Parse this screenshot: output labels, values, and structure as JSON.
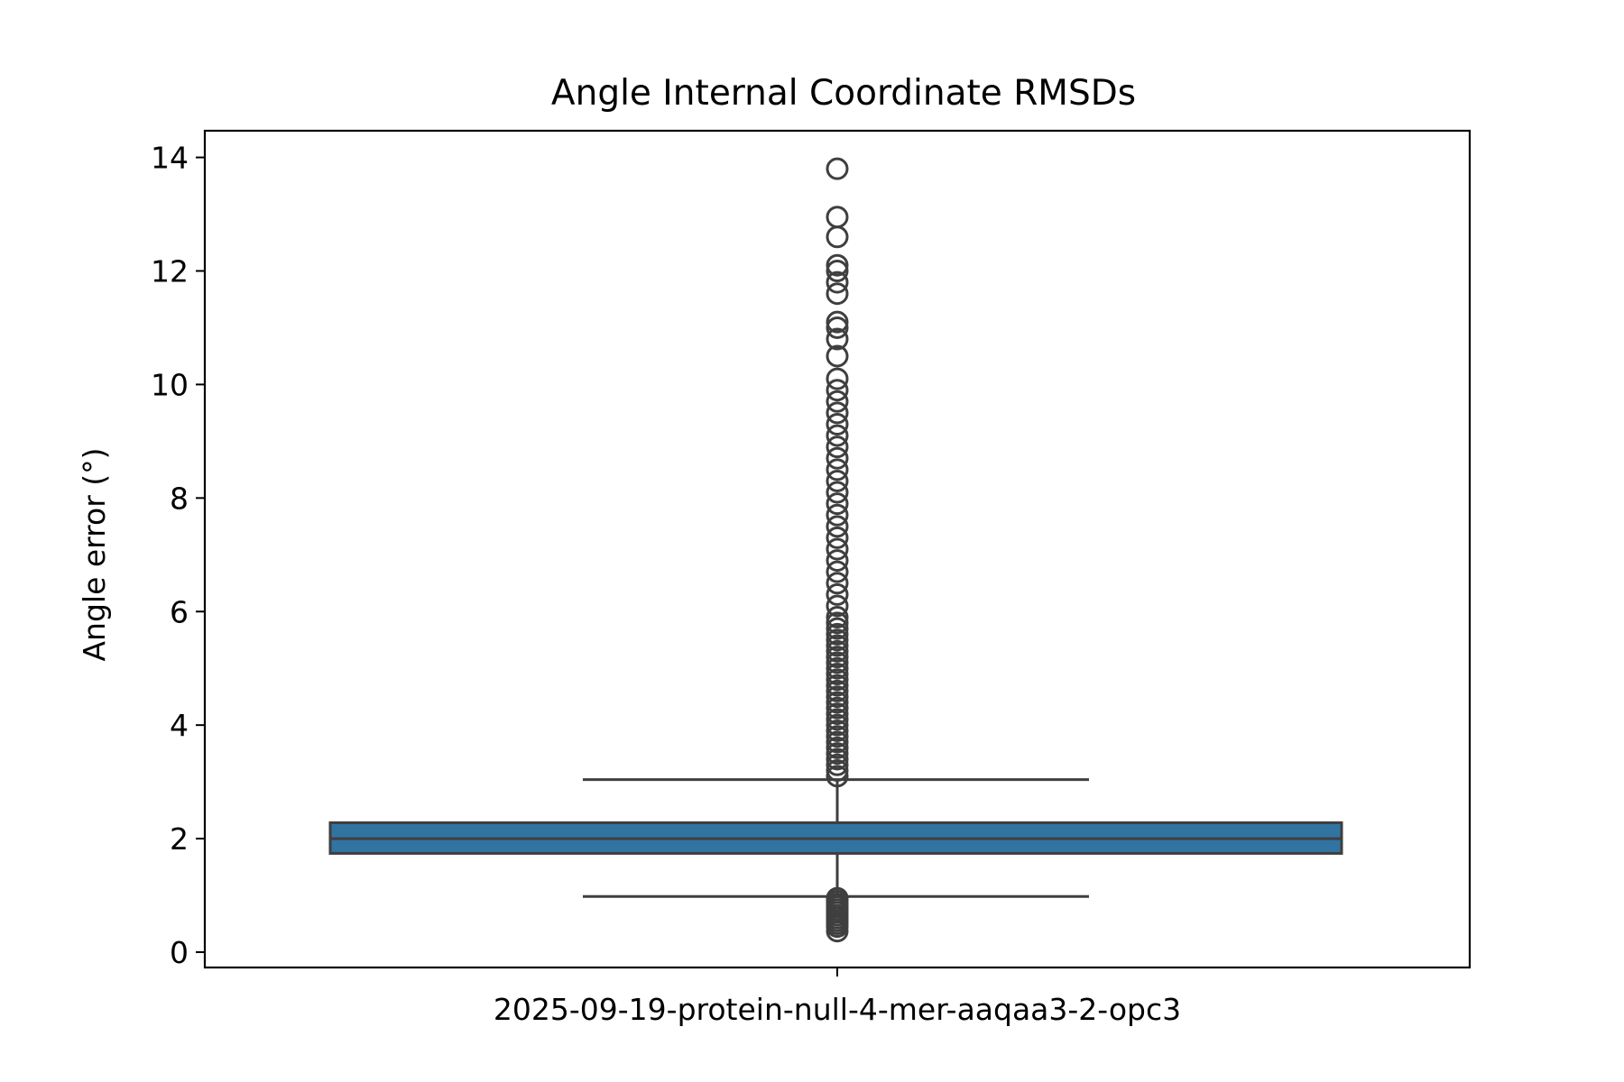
{
  "chart_data": {
    "type": "box",
    "title": "Angle Internal Coordinate RMSDs",
    "xlabel": "",
    "ylabel": "Angle error (°)",
    "categories": [
      "2025-09-19-protein-null-4-mer-aaqaa3-2-opc3"
    ],
    "ylim": [
      -0.27,
      14.47
    ],
    "yticks": [
      0,
      2,
      4,
      6,
      8,
      10,
      12,
      14
    ],
    "grid": false,
    "box": {
      "q1": 1.74,
      "median": 2.0,
      "q3": 2.28,
      "whisker_low": 0.98,
      "whisker_high": 3.04
    },
    "outliers": [
      0.37,
      0.45,
      0.5,
      0.55,
      0.6,
      0.65,
      0.7,
      0.75,
      0.8,
      0.85,
      0.9,
      0.95,
      3.1,
      3.2,
      3.3,
      3.4,
      3.5,
      3.6,
      3.7,
      3.8,
      3.9,
      4.0,
      4.1,
      4.2,
      4.3,
      4.4,
      4.5,
      4.6,
      4.7,
      4.8,
      4.9,
      5.0,
      5.1,
      5.2,
      5.3,
      5.4,
      5.5,
      5.6,
      5.7,
      5.8,
      5.9,
      6.1,
      6.3,
      6.5,
      6.7,
      6.9,
      7.1,
      7.3,
      7.5,
      7.7,
      7.9,
      8.1,
      8.3,
      8.5,
      8.7,
      8.9,
      9.1,
      9.3,
      9.5,
      9.7,
      9.9,
      10.1,
      10.5,
      10.8,
      11.0,
      11.1,
      11.6,
      11.8,
      12.0,
      12.1,
      12.6,
      12.95,
      13.8
    ],
    "colors": {
      "box_fill": "#3274a1",
      "line": "#3f3f3f",
      "axes": "#000000"
    }
  }
}
